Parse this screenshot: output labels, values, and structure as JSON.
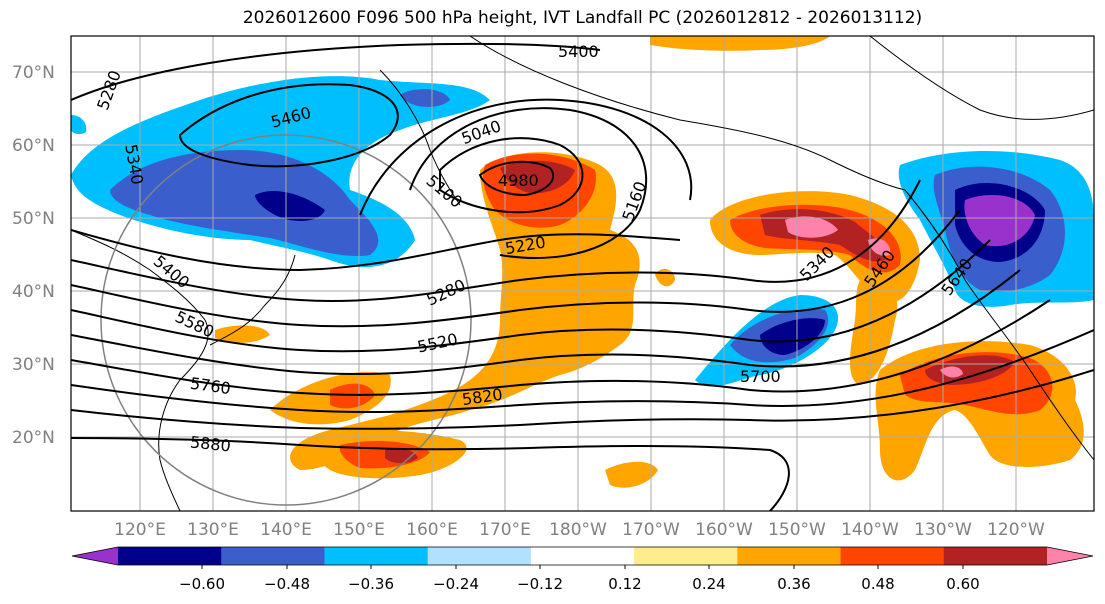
{
  "title": "2026012600 F096 500 hPa height, IVT Landfall PC (2026012812 - 2026013112)",
  "map": {
    "lat_labels": [
      "70°N",
      "60°N",
      "50°N",
      "40°N",
      "30°N",
      "20°N"
    ],
    "lon_labels": [
      "120°E",
      "130°E",
      "140°E",
      "150°E",
      "160°E",
      "170°E",
      "180°W",
      "170°W",
      "160°W",
      "150°W",
      "140°W",
      "130°W",
      "120°W"
    ],
    "contour_labels": [
      "5400",
      "5280",
      "5460",
      "5340",
      "5040",
      "4980",
      "5100",
      "5160",
      "5220",
      "5280",
      "5340",
      "5460",
      "5640",
      "5400",
      "5580",
      "5520",
      "5760",
      "5820",
      "5700",
      "5880"
    ]
  },
  "colorbar": {
    "ticks": [
      "−0.60",
      "−0.48",
      "−0.36",
      "−0.24",
      "−0.12",
      "0.12",
      "0.24",
      "0.36",
      "0.48",
      "0.60"
    ],
    "colors": [
      "#9932cc",
      "#00008b",
      "#3a5fcd",
      "#00bfff",
      "#b0e2ff",
      "#ffffff",
      "#ffec8b",
      "#ffa500",
      "#ff4500",
      "#b22222",
      "#ff82ab"
    ]
  }
}
